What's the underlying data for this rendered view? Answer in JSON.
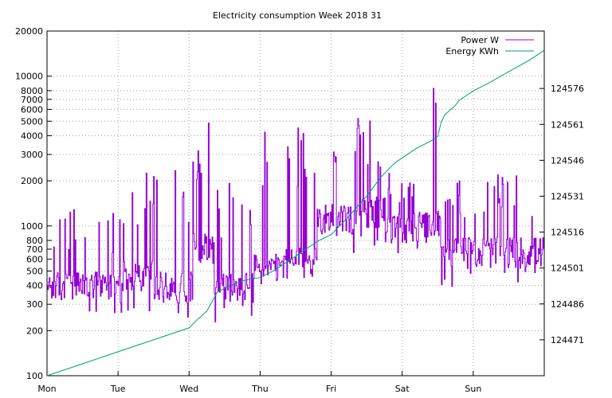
{
  "chart_data": {
    "type": "line",
    "title": "Electricity consumption Week 2018 31",
    "x_tick_labels": [
      "Mon",
      "Tue",
      "Wed",
      "Thu",
      "Fri",
      "Sat",
      "Sun"
    ],
    "x_range_days": [
      0,
      7
    ],
    "grid": true,
    "legend_position": "top-right",
    "y_left": {
      "scale": "log",
      "range": [
        100,
        20000
      ],
      "tick_values": [
        100,
        200,
        300,
        400,
        500,
        600,
        700,
        800,
        1000,
        2000,
        3000,
        4000,
        5000,
        6000,
        7000,
        8000,
        10000,
        20000
      ],
      "tick_labels": [
        "100",
        "200",
        "300",
        "400",
        "500",
        "600",
        "700",
        "800",
        "1000",
        "2000",
        "3000",
        "4000",
        "5000",
        "6000",
        "7000",
        "8000",
        "10000",
        "20000"
      ]
    },
    "y_right": {
      "scale": "linear",
      "range": [
        124456,
        124600
      ],
      "tick_values": [
        124471,
        124486,
        124501,
        124516,
        124531,
        124546,
        124561,
        124576
      ],
      "tick_labels": [
        "124471",
        "124486",
        "124501",
        "124516",
        "124531",
        "124546",
        "124561",
        "124576"
      ]
    },
    "series": [
      {
        "name": "Power W",
        "axis": "left",
        "color": "#9400d3",
        "style": "steps",
        "description_segments": [
          {
            "from_day": 0.0,
            "to_day": 1.05,
            "base": 380,
            "spike_max": 1300
          },
          {
            "from_day": 1.05,
            "to_day": 1.5,
            "base": 450,
            "spike_max": 2300
          },
          {
            "from_day": 1.5,
            "to_day": 2.05,
            "base": 380,
            "spike_max": 2400
          },
          {
            "from_day": 2.05,
            "to_day": 2.35,
            "base": 700,
            "spike_max": 6500
          },
          {
            "from_day": 2.35,
            "to_day": 2.9,
            "base": 380,
            "spike_max": 2000
          },
          {
            "from_day": 2.9,
            "to_day": 3.3,
            "base": 500,
            "spike_max": 5000
          },
          {
            "from_day": 3.3,
            "to_day": 3.8,
            "base": 550,
            "spike_max": 5000
          },
          {
            "from_day": 3.8,
            "to_day": 4.35,
            "base": 1100,
            "spike_max": 4800
          },
          {
            "from_day": 4.35,
            "to_day": 4.75,
            "base": 1200,
            "spike_max": 5300
          },
          {
            "from_day": 4.75,
            "to_day": 5.4,
            "base": 950,
            "spike_max": 2300
          },
          {
            "from_day": 5.4,
            "to_day": 5.55,
            "base": 1000,
            "spike_max": 9000
          },
          {
            "from_day": 5.55,
            "to_day": 7.0,
            "base": 650,
            "spike_max": 2200
          }
        ]
      },
      {
        "name": "Energy KWh",
        "axis": "right",
        "color": "#009e73",
        "style": "line",
        "x": [
          0.0,
          0.5,
          1.0,
          1.5,
          2.0,
          2.1,
          2.25,
          2.4,
          2.6,
          2.8,
          3.0,
          3.2,
          3.5,
          3.8,
          4.0,
          4.2,
          4.5,
          4.7,
          4.9,
          5.0,
          5.2,
          5.4,
          5.5,
          5.55,
          5.6,
          5.75,
          5.8,
          6.0,
          6.2,
          6.5,
          6.8,
          7.0
        ],
        "y": [
          124456,
          124461,
          124466,
          124471,
          124476,
          124479,
          124483,
          124491,
          124494,
          124496,
          124497,
          124500,
          124506,
          124512,
          124515,
          124521,
          124531,
          124539,
          124545,
          124547,
          124551,
          124554,
          124556,
          124562,
          124565,
          124569,
          124571,
          124575,
          124578,
          124583,
          124588,
          124592
        ]
      }
    ]
  }
}
